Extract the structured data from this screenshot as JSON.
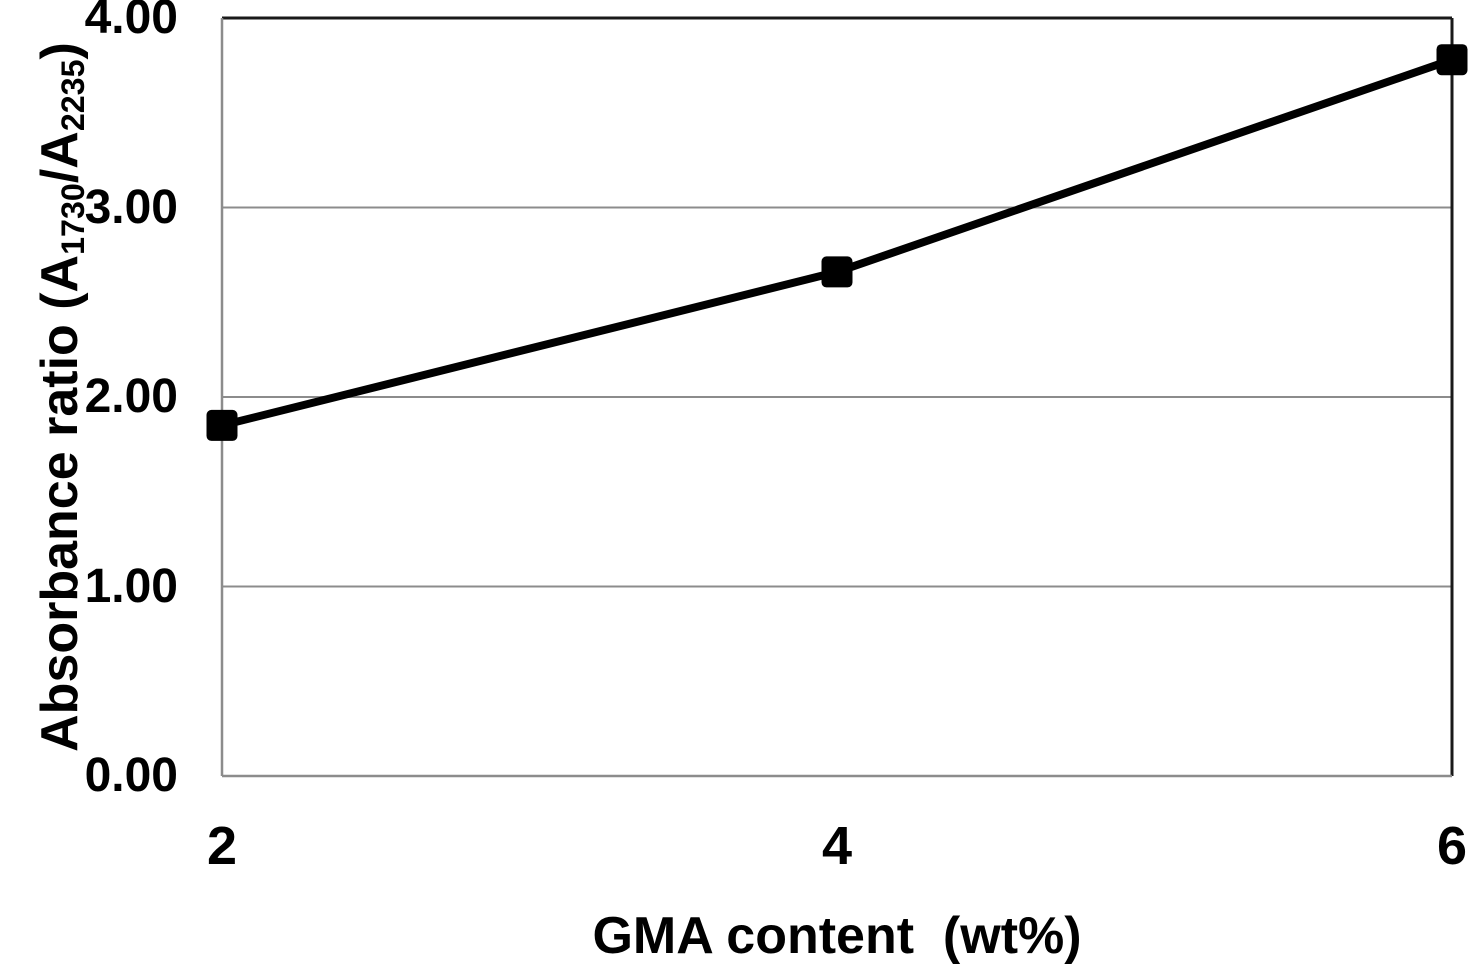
{
  "figure": {
    "background": "#ffffff"
  },
  "chart_data": {
    "type": "line",
    "title": "",
    "xlabel": "GMA content  (wt%)",
    "ylabel": "Absorbance ratio (A1730/A2235)",
    "ylabel_segments": [
      {
        "text": "Absorbance ratio (A",
        "sub": false
      },
      {
        "text": "1730",
        "sub": true
      },
      {
        "text": "/A",
        "sub": false
      },
      {
        "text": "2235",
        "sub": true
      },
      {
        "text": ")",
        "sub": false
      }
    ],
    "x": [
      2,
      4,
      6
    ],
    "y": [
      1.85,
      2.66,
      3.78
    ],
    "x_ticks": [
      {
        "value": 2,
        "label": "2"
      },
      {
        "value": 4,
        "label": "4"
      },
      {
        "value": 6,
        "label": "6"
      }
    ],
    "y_ticks": [
      {
        "value": 0,
        "label": "0.00"
      },
      {
        "value": 1,
        "label": "1.00"
      },
      {
        "value": 2,
        "label": "2.00"
      },
      {
        "value": 3,
        "label": "3.00"
      },
      {
        "value": 4,
        "label": "4.00"
      }
    ],
    "xlim": [
      2,
      6
    ],
    "ylim": [
      0,
      4
    ],
    "grid": "horizontal-only",
    "legend": "none",
    "marker": "filled-square",
    "line_style": "solid",
    "colors": {
      "series": "#000000",
      "grid": "#8c8c8c",
      "axis_text": "#000000",
      "border_top": "#1a1a1a",
      "border_right": "#1a1a1a",
      "border_bottom": "#8c8c8c",
      "border_left": "#8c8c8c",
      "background": "#ffffff"
    }
  }
}
